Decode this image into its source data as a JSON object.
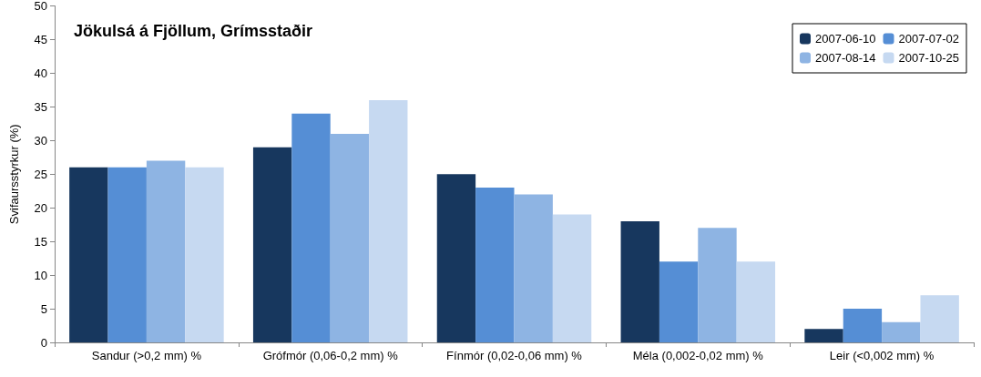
{
  "chart_data": {
    "type": "bar",
    "title": "Jökulsá á Fjöllum, Grímsstaðir",
    "ylabel": "Svifaursstyrkur (%)",
    "categories": [
      "Sandur (>0,2 mm) %",
      "Grófmór (0,06-0,2 mm) %",
      "Fínmór (0,02-0,06 mm) %",
      "Méla (0,002-0,02 mm) %",
      "Leir (<0,002 mm) %"
    ],
    "series": [
      {
        "name": "2007-06-10",
        "color": "#17375e",
        "values": [
          26,
          29,
          25,
          18,
          2
        ]
      },
      {
        "name": "2007-07-02",
        "color": "#558ed5",
        "values": [
          26,
          34,
          23,
          12,
          5
        ]
      },
      {
        "name": "2007-08-14",
        "color": "#8eb4e3",
        "values": [
          27,
          31,
          22,
          17,
          3
        ]
      },
      {
        "name": "2007-10-25",
        "color": "#c6d9f1",
        "values": [
          26,
          36,
          19,
          12,
          7
        ]
      }
    ],
    "ylim": [
      0,
      50
    ],
    "yticks": [
      0,
      5,
      10,
      15,
      20,
      25,
      30,
      35,
      40,
      45,
      50
    ],
    "grid": false,
    "legend": "top right"
  }
}
